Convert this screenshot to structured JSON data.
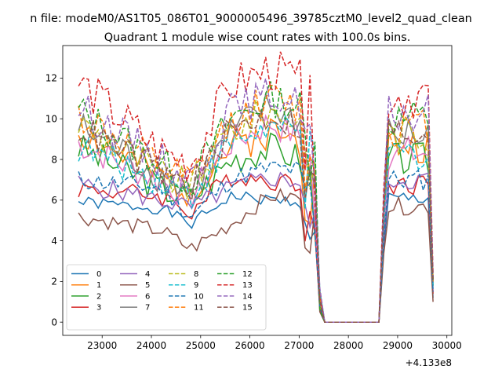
{
  "suptitle": "n file: modeM0/AS1T05_086T01_9000005496_39785cztM0_level2_quad_clean",
  "chart_data": {
    "type": "line",
    "title": "Quadrant 1 module wise count rates with 100.0s bins.",
    "xlabel": "",
    "ylabel": "",
    "x_offset_label": "+4.133e8",
    "xlim": [
      22200,
      30100
    ],
    "ylim": [
      -0.65,
      13.6
    ],
    "x_ticks": [
      23000,
      24000,
      25000,
      26000,
      27000,
      28000,
      29000,
      30000
    ],
    "x_tick_labels": [
      "23000",
      "24000",
      "25000",
      "26000",
      "27000",
      "28000",
      "29000",
      "30000"
    ],
    "y_ticks": [
      0,
      2,
      4,
      6,
      8,
      10,
      12
    ],
    "y_tick_labels": [
      "0",
      "2",
      "4",
      "6",
      "8",
      "10",
      "12"
    ],
    "grid": false,
    "legend_placement": "lower-left",
    "legend_columns": 4,
    "x_start": 22520,
    "x_step": 100,
    "gap_start": 27520,
    "gap_end": 28620,
    "series": [
      {
        "name": "0",
        "color": "#1f77b4",
        "dash": false,
        "base": 5.7,
        "amp": 0.3,
        "env": [
          5.9,
          5.6,
          4.8,
          6.2,
          6.0,
          5.9,
          1.2
        ],
        "seed": 1
      },
      {
        "name": "1",
        "color": "#ff7f0e",
        "dash": false,
        "base": 8.3,
        "amp": 0.9,
        "env": [
          9.4,
          7.0,
          6.5,
          8.6,
          9.4,
          8.5,
          2.0
        ],
        "seed": 2
      },
      {
        "name": "2",
        "color": "#2ca02c",
        "dash": false,
        "base": 7.6,
        "amp": 0.8,
        "env": [
          8.6,
          6.6,
          6.0,
          8.0,
          8.6,
          7.8,
          1.8
        ],
        "seed": 3
      },
      {
        "name": "3",
        "color": "#d62728",
        "dash": false,
        "base": 6.4,
        "amp": 0.5,
        "env": [
          6.6,
          6.2,
          5.4,
          7.2,
          7.0,
          6.7,
          1.4
        ],
        "seed": 4
      },
      {
        "name": "4",
        "color": "#9467bd",
        "dash": false,
        "base": 6.6,
        "amp": 0.5,
        "env": [
          6.8,
          6.0,
          5.6,
          6.6,
          7.1,
          6.8,
          1.5
        ],
        "seed": 5
      },
      {
        "name": "5",
        "color": "#8c564b",
        "dash": false,
        "base": 5.3,
        "amp": 0.4,
        "env": [
          5.2,
          4.5,
          3.6,
          4.8,
          6.2,
          6.1,
          1.0
        ],
        "seed": 6
      },
      {
        "name": "6",
        "color": "#e377c2",
        "dash": false,
        "base": 7.9,
        "amp": 0.8,
        "env": [
          8.8,
          6.9,
          6.2,
          8.8,
          9.8,
          8.8,
          1.9
        ],
        "seed": 7
      },
      {
        "name": "7",
        "color": "#7f7f7f",
        "dash": false,
        "base": 8.8,
        "amp": 0.9,
        "env": [
          9.6,
          7.2,
          6.4,
          9.2,
          10.6,
          9.5,
          2.0
        ],
        "seed": 8
      },
      {
        "name": "8",
        "color": "#bcbd22",
        "dash": true,
        "base": 8.8,
        "amp": 0.9,
        "env": [
          9.8,
          7.3,
          6.6,
          9.4,
          10.4,
          9.6,
          2.0
        ],
        "seed": 9
      },
      {
        "name": "9",
        "color": "#17becf",
        "dash": true,
        "base": 7.9,
        "amp": 0.8,
        "env": [
          8.6,
          7.0,
          6.2,
          8.8,
          9.6,
          8.9,
          1.8
        ],
        "seed": 10
      },
      {
        "name": "10",
        "color": "#1f77b4",
        "dash": true,
        "base": 6.6,
        "amp": 0.5,
        "env": [
          7.0,
          6.6,
          5.2,
          7.0,
          7.6,
          7.4,
          1.5
        ],
        "seed": 11
      },
      {
        "name": "11",
        "color": "#ff7f0e",
        "dash": true,
        "base": 9.2,
        "amp": 0.9,
        "env": [
          10.2,
          7.6,
          6.8,
          9.8,
          11.0,
          10.2,
          2.0
        ],
        "seed": 12
      },
      {
        "name": "12",
        "color": "#2ca02c",
        "dash": true,
        "base": 9.6,
        "amp": 0.9,
        "env": [
          10.4,
          7.8,
          6.9,
          10.0,
          11.0,
          10.4,
          2.1
        ],
        "seed": 13
      },
      {
        "name": "13",
        "color": "#d62728",
        "dash": true,
        "base": 10.8,
        "amp": 1.1,
        "env": [
          11.8,
          8.4,
          7.8,
          11.6,
          12.4,
          11.6,
          2.4
        ],
        "seed": 14
      },
      {
        "name": "14",
        "color": "#9467bd",
        "dash": true,
        "base": 9.8,
        "amp": 0.9,
        "env": [
          10.6,
          8.0,
          7.0,
          10.4,
          11.2,
          10.6,
          2.2
        ],
        "seed": 15
      },
      {
        "name": "15",
        "color": "#8c564b",
        "dash": true,
        "base": 8.9,
        "amp": 0.8,
        "env": [
          9.6,
          7.4,
          6.6,
          9.4,
          10.2,
          9.4,
          2.0
        ],
        "seed": 16
      }
    ]
  }
}
